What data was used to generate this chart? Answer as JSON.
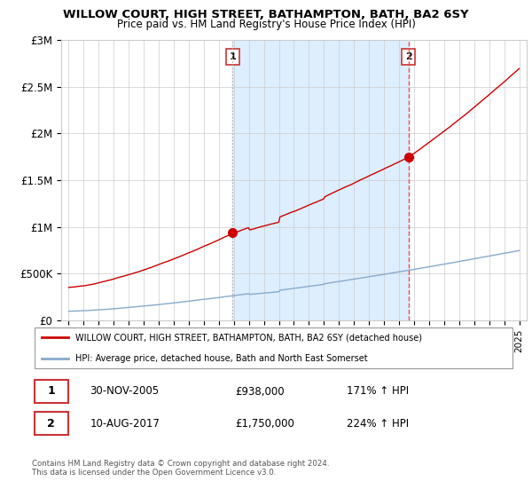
{
  "title": "WILLOW COURT, HIGH STREET, BATHAMPTON, BATH, BA2 6SY",
  "subtitle": "Price paid vs. HM Land Registry's House Price Index (HPI)",
  "ylim": [
    0,
    3000000
  ],
  "yticks": [
    0,
    500000,
    1000000,
    1500000,
    2000000,
    2500000,
    3000000
  ],
  "ytick_labels": [
    "£0",
    "£500K",
    "£1M",
    "£1.5M",
    "£2M",
    "£2.5M",
    "£3M"
  ],
  "xlim_start": 1994.5,
  "xlim_end": 2025.5,
  "xtick_years": [
    1995,
    1996,
    1997,
    1998,
    1999,
    2000,
    2001,
    2002,
    2003,
    2004,
    2005,
    2006,
    2007,
    2008,
    2009,
    2010,
    2011,
    2012,
    2013,
    2014,
    2015,
    2016,
    2017,
    2018,
    2019,
    2020,
    2021,
    2022,
    2023,
    2024,
    2025
  ],
  "sale1_x": 2005.92,
  "sale1_y": 938000,
  "sale2_x": 2017.62,
  "sale2_y": 1750000,
  "sale_color": "#cc0000",
  "hpi_color": "#88aacc",
  "vline1_color": "#aaaaaa",
  "vline2_color": "#ff4444",
  "shade_color": "#ddeeff",
  "legend_label1": "WILLOW COURT, HIGH STREET, BATHAMPTON, BATH, BA2 6SY (detached house)",
  "legend_label2": "HPI: Average price, detached house, Bath and North East Somerset",
  "table_row1_num": "1",
  "table_row1_date": "30-NOV-2005",
  "table_row1_price": "£938,000",
  "table_row1_hpi": "171% ↑ HPI",
  "table_row2_num": "2",
  "table_row2_date": "10-AUG-2017",
  "table_row2_price": "£1,750,000",
  "table_row2_hpi": "224% ↑ HPI",
  "footnote": "Contains HM Land Registry data © Crown copyright and database right 2024.\nThis data is licensed under the Open Government Licence v3.0.",
  "background_color": "#ffffff",
  "grid_color": "#cccccc"
}
